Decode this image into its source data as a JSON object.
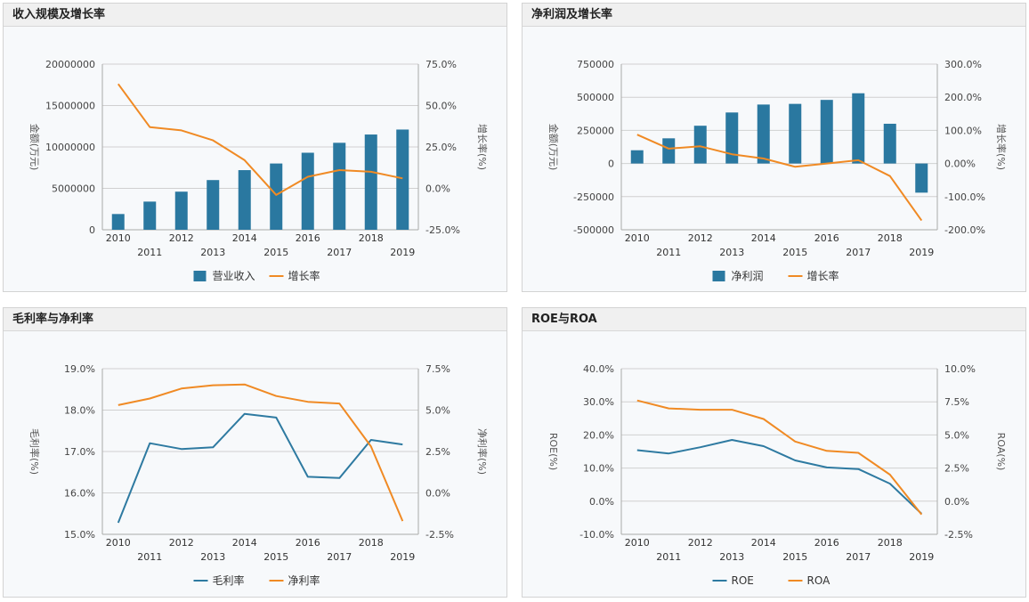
{
  "colors": {
    "bar": "#2a78a0",
    "line_orange": "#f08a24",
    "line_blue": "#2e7aa1",
    "grid": "#d0d0d0"
  },
  "chart_data": [
    {
      "id": "p1",
      "type": "bar",
      "title": "收入规模及增长率",
      "categories": [
        "2010",
        "2011",
        "2012",
        "2013",
        "2014",
        "2015",
        "2016",
        "2017",
        "2018",
        "2019"
      ],
      "y_left": {
        "label": "金额(万元)",
        "min": 0,
        "max": 20000000,
        "ticks": [
          "0",
          "5000000",
          "10000000",
          "15000000",
          "20000000"
        ]
      },
      "y_right": {
        "label": "增长率(%)",
        "min": -25,
        "max": 75,
        "ticks": [
          "-25.0%",
          "0.0%",
          "25.0%",
          "50.0%",
          "75.0%"
        ]
      },
      "bars": {
        "name": "营业收入",
        "axis": "left",
        "values": [
          1900000,
          3400000,
          4600000,
          6000000,
          7200000,
          8000000,
          9300000,
          10500000,
          11500000,
          12100000
        ]
      },
      "lines": [
        {
          "name": "增长率",
          "axis": "right",
          "color": "#f08a24",
          "values": [
            63,
            37,
            35,
            29,
            17,
            -4,
            7,
            11,
            10,
            6
          ]
        }
      ]
    },
    {
      "id": "p2",
      "type": "bar",
      "title": "净利润及增长率",
      "categories": [
        "2010",
        "2011",
        "2012",
        "2013",
        "2014",
        "2015",
        "2016",
        "2017",
        "2018",
        "2019"
      ],
      "y_left": {
        "label": "金额(万元)",
        "min": -500000,
        "max": 750000,
        "ticks": [
          "-500000",
          "-250000",
          "0",
          "250000",
          "500000",
          "750000"
        ]
      },
      "y_right": {
        "label": "增长率(%)",
        "min": -200,
        "max": 300,
        "ticks": [
          "-200.0%",
          "-100.0%",
          "0.00%",
          "100.0%",
          "200.0%",
          "300.0%"
        ]
      },
      "bars": {
        "name": "净利润",
        "axis": "left",
        "values": [
          100000,
          190000,
          285000,
          385000,
          445000,
          450000,
          480000,
          530000,
          300000,
          -220000
        ]
      },
      "lines": [
        {
          "name": "增长率",
          "axis": "right",
          "color": "#f08a24",
          "values": [
            87,
            45,
            52,
            28,
            15,
            -10,
            0,
            10,
            -38,
            -172
          ]
        }
      ]
    },
    {
      "id": "p3",
      "type": "line",
      "title": "毛利率与净利率",
      "categories": [
        "2010",
        "2011",
        "2012",
        "2013",
        "2014",
        "2015",
        "2016",
        "2017",
        "2018",
        "2019"
      ],
      "y_left": {
        "label": "毛利率(%)",
        "min": 15,
        "max": 19,
        "ticks": [
          "15.0%",
          "16.0%",
          "17.0%",
          "18.0%",
          "19.0%"
        ]
      },
      "y_right": {
        "label": "净利率(%)",
        "min": -2.5,
        "max": 7.5,
        "ticks": [
          "-2.5%",
          "0.0%",
          "2.5%",
          "5.0%",
          "7.5%"
        ]
      },
      "lines": [
        {
          "name": "毛利率",
          "axis": "left",
          "color": "#2e7aa1",
          "values": [
            15.28,
            17.2,
            17.06,
            17.1,
            17.91,
            17.82,
            16.39,
            16.36,
            17.28,
            17.17
          ]
        },
        {
          "name": "净利率",
          "axis": "right",
          "color": "#f08a24",
          "values": [
            5.3,
            5.7,
            6.3,
            6.5,
            6.55,
            5.85,
            5.5,
            5.4,
            2.8,
            -1.7
          ]
        }
      ]
    },
    {
      "id": "p4",
      "type": "line",
      "title": "ROE与ROA",
      "categories": [
        "2010",
        "2011",
        "2012",
        "2013",
        "2014",
        "2015",
        "2016",
        "2017",
        "2018",
        "2019"
      ],
      "y_left": {
        "label": "ROE(%)",
        "min": -10,
        "max": 40,
        "ticks": [
          "-10.0%",
          "0.0%",
          "10.0%",
          "20.0%",
          "30.0%",
          "40.0%"
        ]
      },
      "y_right": {
        "label": "ROA(%)",
        "min": -2.5,
        "max": 10,
        "ticks": [
          "-2.5%",
          "0.0%",
          "2.5%",
          "5.0%",
          "7.5%",
          "10.0%"
        ]
      },
      "lines": [
        {
          "name": "ROE",
          "axis": "left",
          "color": "#2e7aa1",
          "values": [
            15.4,
            14.4,
            16.3,
            18.5,
            16.6,
            12.3,
            10.2,
            9.7,
            5.3,
            -3.8
          ]
        },
        {
          "name": "ROA",
          "axis": "right",
          "color": "#f08a24",
          "values": [
            7.6,
            7.0,
            6.9,
            6.9,
            6.2,
            4.5,
            3.8,
            3.65,
            2.0,
            -1.0
          ]
        }
      ]
    }
  ]
}
